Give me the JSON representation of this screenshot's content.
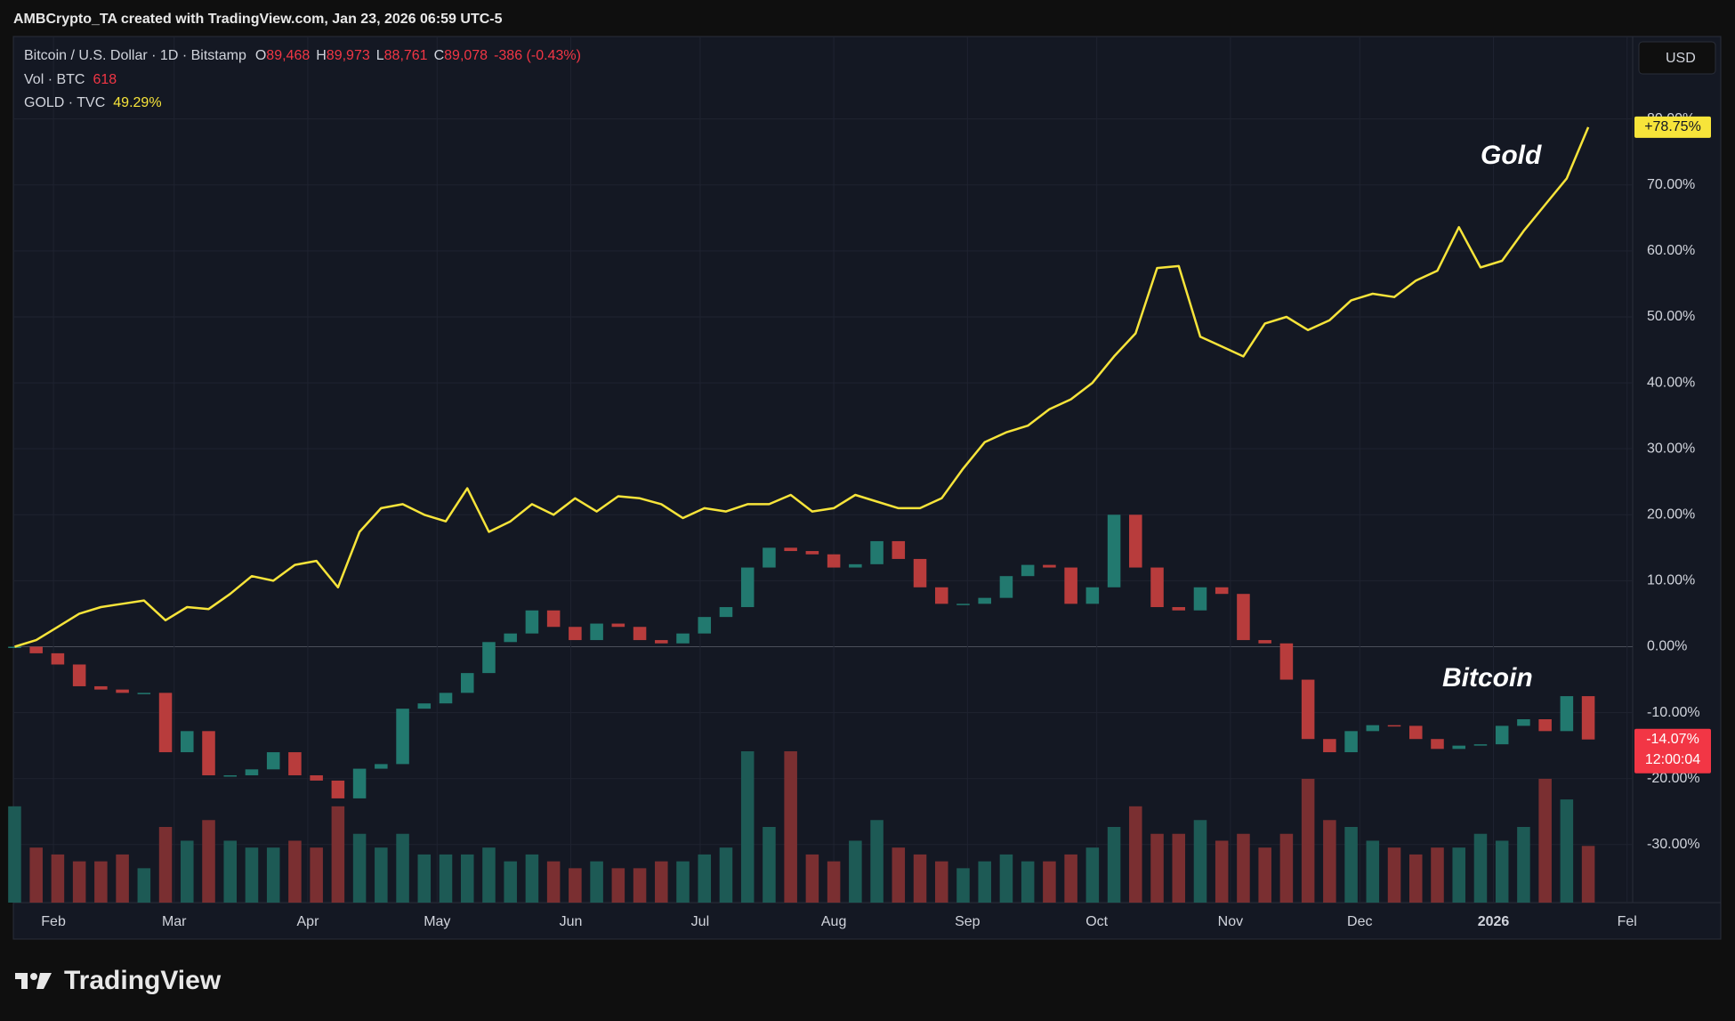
{
  "header": {
    "credit": "AMBCrypto_TA created with TradingView.com, Jan 23, 2026 06:59 UTC-5",
    "ohlc": [
      {
        "key": "O",
        "value": "89,468"
      },
      {
        "key": "H",
        "value": "89,973"
      },
      {
        "key": "L",
        "value": "88,761"
      },
      {
        "key": "C",
        "value": "89,078"
      }
    ],
    "change": "-386 (-0.43%)"
  },
  "currency": "USD",
  "logo": "TradingView",
  "chart_data": {
    "type": "candlestick",
    "x": [
      0,
      5,
      10,
      15,
      20,
      25,
      30,
      35,
      40,
      45,
      50,
      55,
      60,
      65,
      70,
      75,
      80,
      85,
      90,
      95,
      100,
      105,
      110,
      115,
      120,
      125,
      130,
      135,
      140,
      145,
      150,
      155,
      160,
      165,
      170,
      175,
      180,
      185,
      190,
      195,
      200,
      205,
      210,
      215,
      220,
      225,
      230,
      235,
      240,
      245,
      250,
      255,
      260,
      265,
      270,
      275,
      280,
      285,
      290,
      295,
      300,
      305,
      310,
      315,
      320,
      325,
      330,
      335,
      340,
      345,
      350,
      355,
      360,
      365
    ],
    "xlim": [
      -0.3,
      375.3
    ],
    "xticks": [
      {
        "value": 9,
        "label": "Feb"
      },
      {
        "value": 37,
        "label": "Mar"
      },
      {
        "value": 68,
        "label": "Apr"
      },
      {
        "value": 98,
        "label": "May"
      },
      {
        "value": 129,
        "label": "Jun"
      },
      {
        "value": 159,
        "label": "Jul"
      },
      {
        "value": 190,
        "label": "Aug"
      },
      {
        "value": 221,
        "label": "Sep"
      },
      {
        "value": 251,
        "label": "Oct"
      },
      {
        "value": 282,
        "label": "Nov"
      },
      {
        "value": 312,
        "label": "Dec"
      },
      {
        "value": 343,
        "label": "2026",
        "bold": true
      },
      {
        "value": 374,
        "label": "Fel"
      }
    ],
    "ylim": [
      -38.8,
      92.1
    ],
    "yticks": [
      {
        "value": -30,
        "label": "-30.00%"
      },
      {
        "value": -20,
        "label": "-20.00%"
      },
      {
        "value": -10,
        "label": "-10.00%"
      },
      {
        "value": 0,
        "label": "0.00%"
      },
      {
        "value": 10,
        "label": "10.00%"
      },
      {
        "value": 20,
        "label": "20.00%"
      },
      {
        "value": 30,
        "label": "30.00%"
      },
      {
        "value": 40,
        "label": "40.00%"
      },
      {
        "value": 50,
        "label": "50.00%"
      },
      {
        "value": 60,
        "label": "60.00%"
      },
      {
        "value": 70,
        "label": "70.00%"
      },
      {
        "value": 80,
        "label": "80.00%"
      }
    ],
    "grid": true,
    "series": [
      {
        "name": "Bitcoin / U.S. Dollar · 1D · Bitstamp",
        "type": "candlestick",
        "up_color": "#22796f",
        "down_color": "#b83c3c",
        "values": [
          0,
          -1,
          -2.7,
          -6,
          -6.5,
          -7,
          -7,
          -16,
          -12.8,
          -19.5,
          -19.5,
          -18.6,
          -16,
          -19.5,
          -20.3,
          -23,
          -18.5,
          -17.8,
          -9.4,
          -8.6,
          -7,
          -4,
          0.7,
          2,
          5.5,
          3,
          1,
          3.5,
          3,
          1,
          0.5,
          2,
          4.5,
          6,
          12,
          15,
          14.5,
          14,
          12,
          12.5,
          16,
          13.3,
          9,
          6.5,
          6.5,
          7.4,
          10.7,
          12.4,
          12,
          6.5,
          9,
          20,
          12,
          6,
          5.5,
          9,
          8,
          1,
          0.5,
          -5,
          -14,
          -16,
          -12.8,
          -11.9,
          -12,
          -14,
          -15.5,
          -15,
          -14.8,
          -12,
          -11,
          -12.8,
          -7.5,
          -14.07
        ],
        "last_label": "-14.07%",
        "countdown": "12:00:04",
        "annotation": "Bitcoin"
      },
      {
        "name": "GOLD · TVC",
        "type": "line",
        "color": "#f7e43a",
        "values": [
          0,
          1,
          3,
          5,
          6,
          6.5,
          7,
          4,
          6,
          5.7,
          8,
          10.7,
          10,
          12.4,
          13,
          9,
          17.4,
          21,
          21.6,
          20,
          19,
          24,
          17.4,
          19,
          21.6,
          20,
          22.5,
          20.5,
          22.8,
          22.5,
          21.6,
          19.5,
          21,
          20.5,
          21.6,
          21.6,
          23,
          20.5,
          21,
          23,
          22,
          21,
          21,
          22.5,
          27,
          31,
          32.5,
          33.5,
          36,
          37.5,
          40,
          44,
          47.5,
          57.4,
          57.7,
          47,
          45.5,
          44,
          49,
          50,
          48,
          49.5,
          52.5,
          53.5,
          53,
          55.5,
          57,
          63.6,
          57.5,
          58.5,
          63,
          67,
          71,
          78.75
        ],
        "last_label": "+78.75%",
        "legend_value": "49.29%",
        "annotation": "Gold"
      },
      {
        "name": "Vol · BTC",
        "type": "volume",
        "up_color": "#1d5a55",
        "down_color": "#7a2f31",
        "values": [
          1050,
          600,
          525,
          450,
          450,
          525,
          375,
          825,
          675,
          900,
          675,
          600,
          600,
          675,
          600,
          1050,
          750,
          600,
          750,
          525,
          525,
          525,
          600,
          450,
          525,
          450,
          375,
          450,
          375,
          375,
          450,
          450,
          525,
          600,
          1650,
          825,
          1650,
          525,
          450,
          675,
          900,
          600,
          525,
          450,
          375,
          450,
          525,
          450,
          450,
          525,
          600,
          825,
          1050,
          750,
          750,
          900,
          675,
          750,
          600,
          750,
          1350,
          900,
          825,
          675,
          600,
          525,
          600,
          600,
          750,
          675,
          825,
          1350,
          1125,
          618
        ],
        "legend_value": "618"
      }
    ]
  }
}
